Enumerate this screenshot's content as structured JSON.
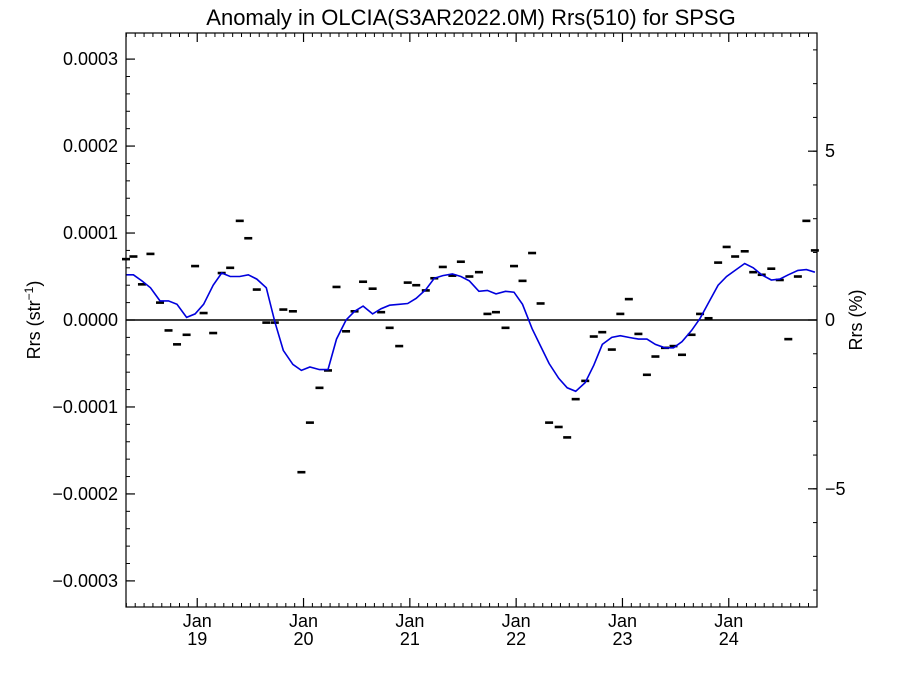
{
  "chart_data": {
    "type": "line",
    "title": "Anomaly in OLCIA(S3AR2022.0M) Rrs(510) for SPSG",
    "ylabel": "Rrs (str",
    "ylabel_sup": "−1",
    "ylabel_close": ")",
    "y2label": "Rrs (%)",
    "xlim": [
      2018.33,
      2024.83
    ],
    "ylim": [
      -0.00033,
      0.00033
    ],
    "y2lim": [
      -8.5,
      8.5
    ],
    "yticks": [
      {
        "value": 0.0003,
        "label": "0.0003"
      },
      {
        "value": 0.0002,
        "label": "0.0002"
      },
      {
        "value": 0.0001,
        "label": "0.0001"
      },
      {
        "value": 0.0,
        "label": "0.0000"
      },
      {
        "value": -0.0001,
        "label": "−0.0001"
      },
      {
        "value": -0.0002,
        "label": "−0.0002"
      },
      {
        "value": -0.0003,
        "label": "−0.0003"
      }
    ],
    "y2ticks": [
      {
        "value": 5,
        "label": "5"
      },
      {
        "value": 0,
        "label": "0"
      },
      {
        "value": -5,
        "label": "−5"
      }
    ],
    "xticks": [
      {
        "value": 2019.0,
        "month": "Jan",
        "year": "19"
      },
      {
        "value": 2020.0,
        "month": "Jan",
        "year": "20"
      },
      {
        "value": 2021.0,
        "month": "Jan",
        "year": "21"
      },
      {
        "value": 2022.0,
        "month": "Jan",
        "year": "22"
      },
      {
        "value": 2023.0,
        "month": "Jan",
        "year": "23"
      },
      {
        "value": 2024.0,
        "month": "Jan",
        "year": "24"
      }
    ],
    "zero_line": true,
    "colors": {
      "line": "#0000dd",
      "points": "#000000",
      "axes": "#000000"
    },
    "series": [
      {
        "style": "dash-markers",
        "x": [
          2018.33,
          2018.4,
          2018.48,
          2018.56,
          2018.65,
          2018.73,
          2018.81,
          2018.9,
          2018.98,
          2019.06,
          2019.15,
          2019.23,
          2019.31,
          2019.4,
          2019.48,
          2019.56,
          2019.65,
          2019.73,
          2019.81,
          2019.9,
          2019.98,
          2020.06,
          2020.15,
          2020.23,
          2020.31,
          2020.4,
          2020.48,
          2020.56,
          2020.65,
          2020.73,
          2020.81,
          2020.9,
          2020.98,
          2021.06,
          2021.15,
          2021.23,
          2021.31,
          2021.4,
          2021.48,
          2021.56,
          2021.65,
          2021.73,
          2021.81,
          2021.9,
          2021.98,
          2022.06,
          2022.15,
          2022.23,
          2022.31,
          2022.4,
          2022.48,
          2022.56,
          2022.65,
          2022.73,
          2022.81,
          2022.9,
          2022.98,
          2023.06,
          2023.15,
          2023.23,
          2023.31,
          2023.4,
          2023.48,
          2023.56,
          2023.65,
          2023.73,
          2023.81,
          2023.9,
          2023.98,
          2024.06,
          2024.15,
          2024.23,
          2024.31,
          2024.4,
          2024.48,
          2024.56,
          2024.65,
          2024.73,
          2024.81
        ],
        "values": [
          7e-05,
          7.3e-05,
          4.1e-05,
          7.6e-05,
          2e-05,
          -1.2e-05,
          -2.8e-05,
          -1.7e-05,
          6.2e-05,
          8e-06,
          -1.5e-05,
          5.4e-05,
          6e-05,
          0.000114,
          9.4e-05,
          3.5e-05,
          -3e-06,
          -3e-06,
          1.2e-05,
          1e-05,
          -0.000175,
          -0.000118,
          -7.8e-05,
          -5.8e-05,
          3.8e-05,
          -1.3e-05,
          1e-05,
          4.4e-05,
          3.6e-05,
          9e-06,
          -9e-06,
          -3e-05,
          4.3e-05,
          4e-05,
          3.4e-05,
          4.8e-05,
          6.1e-05,
          5.1e-05,
          6.7e-05,
          5e-05,
          5.5e-05,
          7e-06,
          9e-06,
          -9e-06,
          6.2e-05,
          4.5e-05,
          7.7e-05,
          1.9e-05,
          -0.000118,
          -0.000123,
          -0.000135,
          -9.1e-05,
          -7e-05,
          -1.9e-05,
          -1.4e-05,
          -3.4e-05,
          7e-06,
          2.4e-05,
          -1.6e-05,
          -6.3e-05,
          -4.2e-05,
          -3.2e-05,
          -3e-05,
          -4e-05,
          -1.7e-05,
          7e-06,
          2e-06,
          6.6e-05,
          8.4e-05,
          7.3e-05,
          7.9e-05,
          5.5e-05,
          5.2e-05,
          5.9e-05,
          4.6e-05,
          -2.2e-05,
          5e-05,
          0.000114,
          8e-05
        ]
      },
      {
        "style": "line",
        "x": [
          2018.33,
          2018.4,
          2018.48,
          2018.56,
          2018.65,
          2018.73,
          2018.81,
          2018.9,
          2018.98,
          2019.06,
          2019.15,
          2019.23,
          2019.31,
          2019.4,
          2019.48,
          2019.56,
          2019.65,
          2019.73,
          2019.81,
          2019.9,
          2019.98,
          2020.06,
          2020.15,
          2020.23,
          2020.31,
          2020.4,
          2020.48,
          2020.56,
          2020.65,
          2020.73,
          2020.81,
          2020.9,
          2020.98,
          2021.06,
          2021.15,
          2021.23,
          2021.31,
          2021.4,
          2021.48,
          2021.56,
          2021.65,
          2021.73,
          2021.81,
          2021.9,
          2021.98,
          2022.06,
          2022.15,
          2022.23,
          2022.31,
          2022.4,
          2022.48,
          2022.56,
          2022.65,
          2022.73,
          2022.81,
          2022.9,
          2022.98,
          2023.06,
          2023.15,
          2023.23,
          2023.31,
          2023.4,
          2023.48,
          2023.56,
          2023.65,
          2023.73,
          2023.81,
          2023.9,
          2023.98,
          2024.06,
          2024.15,
          2024.23,
          2024.31,
          2024.4,
          2024.48,
          2024.56,
          2024.65,
          2024.73,
          2024.81
        ],
        "values": [
          5.2e-05,
          5.2e-05,
          4.5e-05,
          3.7e-05,
          2.2e-05,
          2.2e-05,
          1.8e-05,
          3e-06,
          7e-06,
          1.8e-05,
          4e-05,
          5.4e-05,
          5e-05,
          5e-05,
          5.2e-05,
          4.7e-05,
          3.7e-05,
          -2e-06,
          -3.5e-05,
          -5.1e-05,
          -5.8e-05,
          -5.4e-05,
          -5.7e-05,
          -5.7e-05,
          -2.2e-05,
          0.0,
          1e-05,
          1.6e-05,
          7e-06,
          1.3e-05,
          1.7e-05,
          1.8e-05,
          1.9e-05,
          2.5e-05,
          3.5e-05,
          4.8e-05,
          5.1e-05,
          5.3e-05,
          5e-05,
          4.5e-05,
          3.3e-05,
          3.4e-05,
          3e-05,
          3.3e-05,
          3.2e-05,
          1.8e-05,
          -1e-05,
          -3e-05,
          -5e-05,
          -6.7e-05,
          -7.8e-05,
          -8.2e-05,
          -7.2e-05,
          -5.2e-05,
          -2.8e-05,
          -2e-05,
          -1.8e-05,
          -2e-05,
          -2.2e-05,
          -2.2e-05,
          -2.8e-05,
          -3.2e-05,
          -3.2e-05,
          -2.5e-05,
          -1.2e-05,
          2e-06,
          2e-05,
          4e-05,
          5e-05,
          5.7e-05,
          6.5e-05,
          6e-05,
          5.2e-05,
          4.6e-05,
          4.7e-05,
          5.2e-05,
          5.7e-05,
          5.8e-05,
          5.5e-05
        ]
      }
    ]
  }
}
